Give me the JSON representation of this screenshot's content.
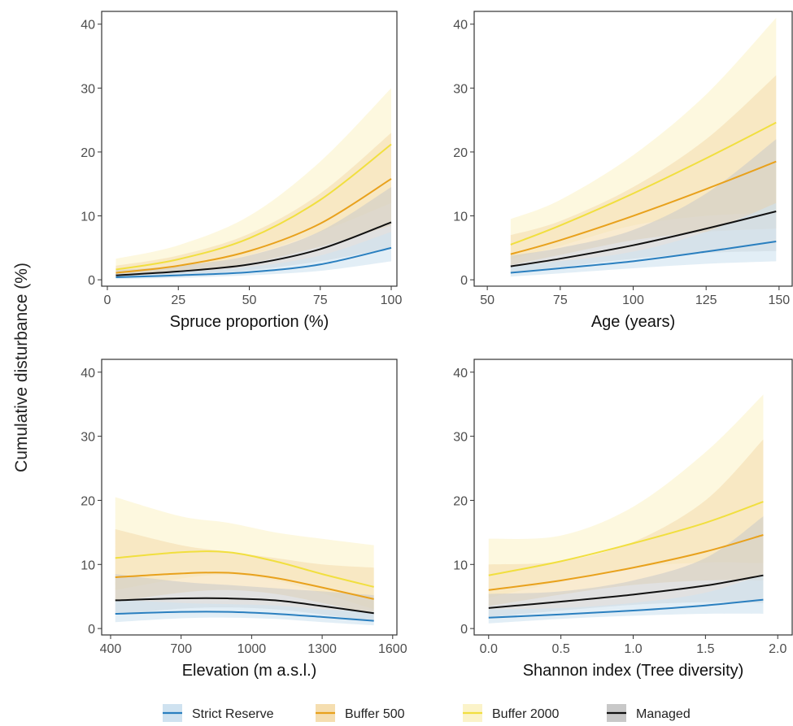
{
  "y_axis_label": "Cumulative disturbance (%)",
  "legend": [
    {
      "name": "Strict Reserve",
      "line": "#2a7fbf",
      "band": "#cfe2f0"
    },
    {
      "name": "Buffer 500",
      "line": "#e8a11c",
      "band": "#f5deb0"
    },
    {
      "name": "Buffer 2000",
      "line": "#f1df3f",
      "band": "#fbf3c9"
    },
    {
      "name": "Managed",
      "line": "#111111",
      "band": "#c8c8c8"
    }
  ],
  "chart_data": [
    {
      "type": "line",
      "xlabel": "Spruce proportion (%)",
      "ylabel": "Cumulative disturbance (%)",
      "xlim": [
        -2,
        102
      ],
      "ylim": [
        -1,
        42
      ],
      "xticks": [
        0,
        25,
        50,
        75,
        100
      ],
      "xtick_labels": [
        "0",
        "25",
        "50",
        "75",
        "100"
      ],
      "yticks": [
        0,
        10,
        20,
        30,
        40
      ],
      "ytick_labels": [
        "0",
        "10",
        "20",
        "30",
        "40"
      ],
      "x": [
        3,
        25,
        50,
        75,
        100
      ],
      "series": [
        {
          "name": "Strict Reserve",
          "values": [
            0.4,
            0.7,
            1.2,
            2.4,
            5.0
          ],
          "lower": [
            0.1,
            0.3,
            0.7,
            1.4,
            2.9
          ],
          "upper": [
            0.9,
            1.2,
            2.0,
            3.8,
            7.5
          ]
        },
        {
          "name": "Buffer 500",
          "values": [
            1.1,
            2.2,
            4.5,
            8.8,
            15.8
          ],
          "lower": [
            0.5,
            1.2,
            2.6,
            5.2,
            8.5
          ],
          "upper": [
            2.2,
            3.8,
            7.2,
            13.5,
            23.0
          ]
        },
        {
          "name": "Buffer 2000",
          "values": [
            1.6,
            3.2,
            6.5,
            12.5,
            21.2
          ],
          "lower": [
            0.8,
            1.8,
            3.9,
            7.5,
            12.0
          ],
          "upper": [
            3.3,
            5.4,
            10.0,
            18.5,
            30.0
          ]
        },
        {
          "name": "Managed",
          "values": [
            0.7,
            1.3,
            2.4,
            4.8,
            9.0
          ],
          "lower": [
            0.3,
            0.7,
            1.5,
            2.9,
            5.0
          ],
          "upper": [
            1.5,
            2.2,
            3.8,
            7.6,
            14.5
          ]
        }
      ]
    },
    {
      "type": "line",
      "xlabel": "Age (years)",
      "ylabel": "Cumulative disturbance (%)",
      "xlim": [
        45.5,
        154.5
      ],
      "ylim": [
        -1,
        42
      ],
      "xticks": [
        50,
        75,
        100,
        125,
        150
      ],
      "xtick_labels": [
        "50",
        "75",
        "100",
        "125",
        "150"
      ],
      "yticks": [
        0,
        10,
        20,
        30,
        40
      ],
      "ytick_labels": [
        "0",
        "10",
        "20",
        "30",
        "40"
      ],
      "x": [
        58,
        75,
        100,
        125,
        149
      ],
      "series": [
        {
          "name": "Strict Reserve",
          "values": [
            1.1,
            1.8,
            2.9,
            4.4,
            6.0
          ],
          "lower": [
            0.5,
            1.0,
            1.8,
            2.5,
            2.9
          ],
          "upper": [
            2.2,
            2.9,
            4.4,
            7.5,
            12.0
          ]
        },
        {
          "name": "Buffer 500",
          "values": [
            4.0,
            6.2,
            10.0,
            14.2,
            18.5
          ],
          "lower": [
            2.3,
            3.9,
            6.2,
            7.5,
            8.0
          ],
          "upper": [
            7.0,
            9.2,
            14.5,
            22.0,
            32.0
          ]
        },
        {
          "name": "Buffer 2000",
          "values": [
            5.5,
            8.5,
            13.5,
            19.0,
            24.6
          ],
          "lower": [
            3.2,
            5.3,
            8.5,
            10.0,
            10.5
          ],
          "upper": [
            9.5,
            12.5,
            19.5,
            29.0,
            41.0
          ]
        },
        {
          "name": "Managed",
          "values": [
            2.1,
            3.3,
            5.4,
            8.0,
            10.7
          ],
          "lower": [
            1.2,
            2.0,
            3.3,
            4.2,
            4.5
          ],
          "upper": [
            3.8,
            5.0,
            7.8,
            13.5,
            22.0
          ]
        }
      ]
    },
    {
      "type": "line",
      "xlabel": "Elevation (m a.s.l.)",
      "ylabel": "Cumulative disturbance (%)",
      "xlim": [
        362,
        1618
      ],
      "ylim": [
        -1,
        42
      ],
      "xticks": [
        400,
        700,
        1000,
        1300,
        1600
      ],
      "xtick_labels": [
        "400",
        "700",
        "1000",
        "1300",
        "1600"
      ],
      "yticks": [
        0,
        10,
        20,
        30,
        40
      ],
      "ytick_labels": [
        "0",
        "10",
        "20",
        "30",
        "40"
      ],
      "x": [
        420,
        700,
        900,
        1100,
        1300,
        1520
      ],
      "series": [
        {
          "name": "Strict Reserve",
          "values": [
            2.3,
            2.6,
            2.6,
            2.3,
            1.8,
            1.2
          ],
          "lower": [
            1.0,
            1.6,
            1.7,
            1.5,
            1.0,
            0.5
          ],
          "upper": [
            4.5,
            4.0,
            3.8,
            3.6,
            3.0,
            2.6
          ]
        },
        {
          "name": "Buffer 500",
          "values": [
            8.0,
            8.6,
            8.7,
            7.9,
            6.4,
            4.6
          ],
          "lower": [
            4.2,
            5.6,
            6.0,
            5.4,
            4.0,
            2.2
          ],
          "upper": [
            15.5,
            13.0,
            12.0,
            11.0,
            10.0,
            9.5
          ]
        },
        {
          "name": "Buffer 2000",
          "values": [
            11.0,
            11.9,
            11.9,
            10.5,
            8.5,
            6.5
          ],
          "lower": [
            6.0,
            7.8,
            8.4,
            7.5,
            5.5,
            3.0
          ],
          "upper": [
            20.5,
            17.5,
            16.5,
            15.0,
            14.0,
            13.0
          ]
        },
        {
          "name": "Managed",
          "values": [
            4.4,
            4.7,
            4.7,
            4.4,
            3.5,
            2.4
          ],
          "lower": [
            2.2,
            3.1,
            3.3,
            3.0,
            2.2,
            1.1
          ],
          "upper": [
            8.5,
            7.3,
            6.8,
            6.3,
            5.8,
            5.2
          ]
        }
      ]
    },
    {
      "type": "line",
      "xlabel": "Shannon index (Tree diversity)",
      "ylabel": "Cumulative disturbance (%)",
      "xlim": [
        -0.1,
        2.1
      ],
      "ylim": [
        -1,
        42
      ],
      "xticks": [
        0.0,
        0.5,
        1.0,
        1.5,
        2.0
      ],
      "xtick_labels": [
        "0.0",
        "0.5",
        "1.0",
        "1.5",
        "2.0"
      ],
      "yticks": [
        0,
        10,
        20,
        30,
        40
      ],
      "ytick_labels": [
        "0",
        "10",
        "20",
        "30",
        "40"
      ],
      "x": [
        0.0,
        0.5,
        1.0,
        1.5,
        1.9
      ],
      "series": [
        {
          "name": "Strict Reserve",
          "values": [
            1.7,
            2.2,
            2.8,
            3.6,
            4.5
          ],
          "lower": [
            0.8,
            1.5,
            2.0,
            2.3,
            2.3
          ],
          "upper": [
            3.0,
            3.2,
            4.0,
            5.6,
            8.5
          ]
        },
        {
          "name": "Buffer 500",
          "values": [
            6.0,
            7.5,
            9.5,
            12.0,
            14.6
          ],
          "lower": [
            3.5,
            5.3,
            6.8,
            7.5,
            7.5
          ],
          "upper": [
            10.0,
            10.5,
            13.5,
            20.0,
            29.5
          ]
        },
        {
          "name": "Buffer 2000",
          "values": [
            8.3,
            10.5,
            13.3,
            16.5,
            19.8
          ],
          "lower": [
            4.8,
            7.3,
            9.5,
            10.3,
            10.2
          ],
          "upper": [
            14.0,
            14.5,
            19.0,
            27.5,
            36.5
          ]
        },
        {
          "name": "Managed",
          "values": [
            3.2,
            4.2,
            5.3,
            6.7,
            8.3
          ],
          "lower": [
            1.8,
            2.8,
            3.7,
            4.1,
            4.0
          ],
          "upper": [
            5.4,
            5.8,
            7.5,
            11.0,
            17.5
          ]
        }
      ]
    }
  ]
}
